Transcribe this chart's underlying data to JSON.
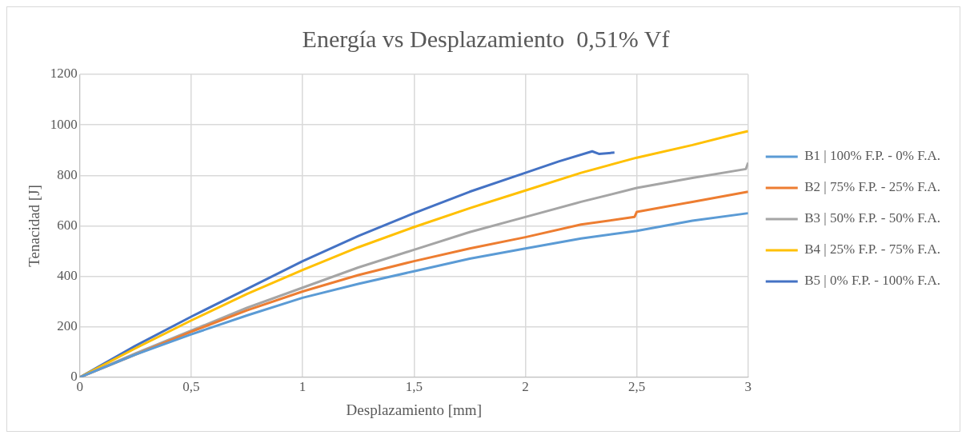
{
  "chart_data": {
    "type": "line",
    "title": "Energía vs Desplazamiento  0,51% Vf",
    "xlabel": "Desplazamiento [mm]",
    "ylabel": "Tenacidad [J]",
    "xlim": [
      0,
      3
    ],
    "xticks": [
      0,
      {
        "value": 0.5,
        "label": "0,5"
      },
      1,
      {
        "value": 1.5,
        "label": "1,5"
      },
      2,
      {
        "value": 2.5,
        "label": "2,5"
      },
      3
    ],
    "ylim": [
      0,
      1200
    ],
    "yticks": [
      0,
      200,
      400,
      600,
      800,
      1000,
      1200
    ],
    "grid": true,
    "legend": "right",
    "marker": "none",
    "line_style": "solid",
    "series": [
      {
        "name": "B1 | 100% F.P. - 0% F.A.",
        "color": "#5b9bd5",
        "x": [
          0,
          0.25,
          0.5,
          0.75,
          1,
          1.25,
          1.5,
          1.75,
          2,
          2.25,
          2.5,
          2.75,
          3
        ],
        "values": [
          0,
          90,
          170,
          245,
          315,
          370,
          420,
          470,
          510,
          550,
          580,
          620,
          650
        ]
      },
      {
        "name": "B2 | 75% F.P. - 25% F.A.",
        "color": "#ed7d31",
        "x": [
          0,
          0.25,
          0.5,
          0.75,
          1,
          1.25,
          1.5,
          1.75,
          2,
          2.25,
          2.49,
          2.5,
          2.75,
          3
        ],
        "values": [
          0,
          90,
          180,
          265,
          340,
          405,
          460,
          510,
          555,
          605,
          635,
          655,
          695,
          735
        ]
      },
      {
        "name": "B3 | 50% F.P. - 50% F.A.",
        "color": "#a5a5a5",
        "x": [
          0,
          0.25,
          0.5,
          0.75,
          1,
          1.25,
          1.5,
          1.75,
          2,
          2.25,
          2.5,
          2.75,
          2.99,
          3
        ],
        "values": [
          0,
          95,
          185,
          275,
          355,
          435,
          505,
          575,
          635,
          695,
          750,
          790,
          825,
          850
        ]
      },
      {
        "name": "B4 | 25% F.P. - 75% F.A.",
        "color": "#ffc000",
        "x": [
          0,
          0.25,
          0.5,
          0.75,
          1,
          1.25,
          1.5,
          1.75,
          2,
          2.25,
          2.5,
          2.75,
          2.95,
          3
        ],
        "values": [
          0,
          115,
          225,
          330,
          425,
          515,
          595,
          670,
          740,
          810,
          870,
          920,
          965,
          975
        ]
      },
      {
        "name": "B5 | 0% F.P. - 100% F.A.",
        "color": "#4472c4",
        "x": [
          0,
          0.25,
          0.5,
          0.75,
          1,
          1.25,
          1.5,
          1.75,
          2,
          2.15,
          2.3,
          2.33,
          2.4
        ],
        "values": [
          0,
          125,
          240,
          350,
          460,
          560,
          650,
          735,
          810,
          855,
          895,
          885,
          890
        ]
      }
    ]
  }
}
